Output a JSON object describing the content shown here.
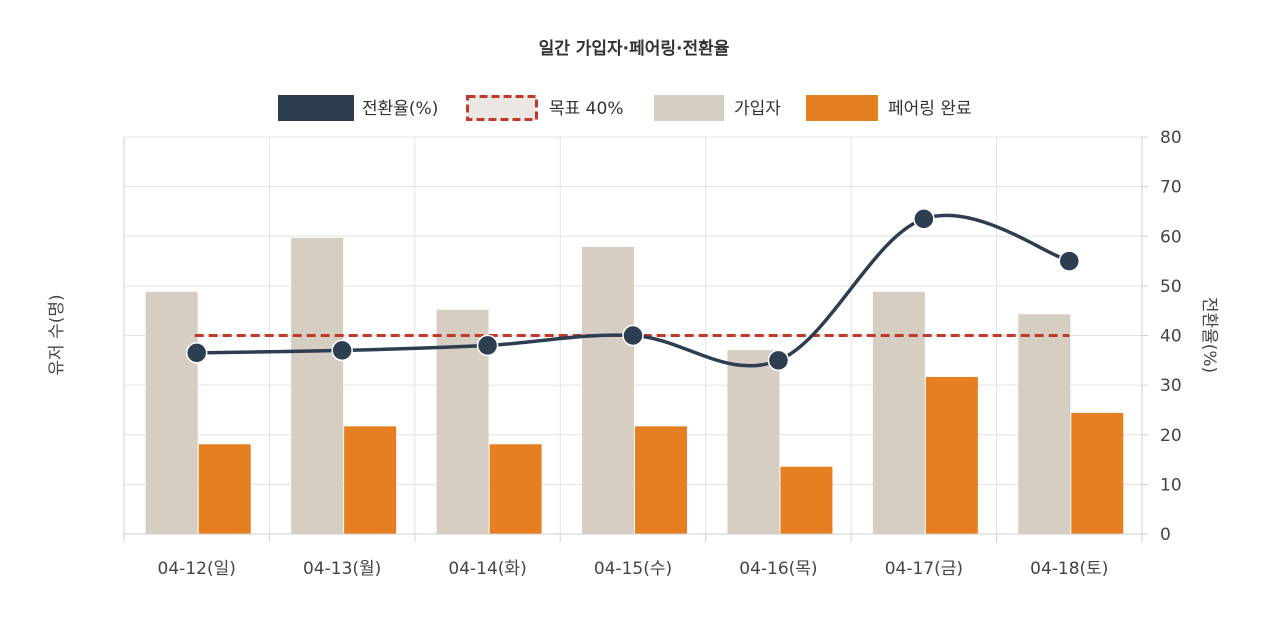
{
  "chart_data": {
    "type": "bar",
    "title": "일간 가입자·페어링·전환율",
    "categories": [
      "04-12(일)",
      "04-13(월)",
      "04-14(화)",
      "04-15(수)",
      "04-16(목)",
      "04-17(금)",
      "04-18(토)"
    ],
    "series": [
      {
        "name": "가입자",
        "type": "bar",
        "axis": "left",
        "color": "#d6cec3",
        "values": [
          54,
          66,
          50,
          64,
          41,
          54,
          49
        ]
      },
      {
        "name": "페어링 완료",
        "type": "bar",
        "axis": "left",
        "color": "#e67e22",
        "values": [
          20,
          24,
          20,
          24,
          15,
          35,
          27
        ]
      },
      {
        "name": "전환율(%)",
        "type": "line",
        "axis": "right",
        "color": "#2c3e50",
        "values": [
          36.5,
          37,
          38,
          40,
          35,
          63.5,
          55
        ]
      },
      {
        "name": "목표 40%",
        "type": "line",
        "style": "dashed",
        "axis": "right",
        "color": "#c0392b",
        "values": [
          40,
          40,
          40,
          40,
          40,
          40,
          40
        ]
      }
    ],
    "ylabel": "유저 수(명)",
    "y2label": "전환율(%)",
    "y2lim": [
      0,
      80
    ],
    "y2ticks": [
      0,
      10,
      20,
      30,
      40,
      50,
      60,
      70,
      80
    ],
    "legend_position": "top",
    "grid": true
  },
  "legend": [
    {
      "label": "전환율(%)",
      "style": "solid-fill",
      "color": "#2c3e50"
    },
    {
      "label": "목표 40%",
      "style": "dashed-box",
      "color": "#c0392b"
    },
    {
      "label": "가입자",
      "style": "solid-fill",
      "color": "#d6cec3"
    },
    {
      "label": "페어링 완료",
      "style": "solid-fill",
      "color": "#e67e22"
    }
  ]
}
